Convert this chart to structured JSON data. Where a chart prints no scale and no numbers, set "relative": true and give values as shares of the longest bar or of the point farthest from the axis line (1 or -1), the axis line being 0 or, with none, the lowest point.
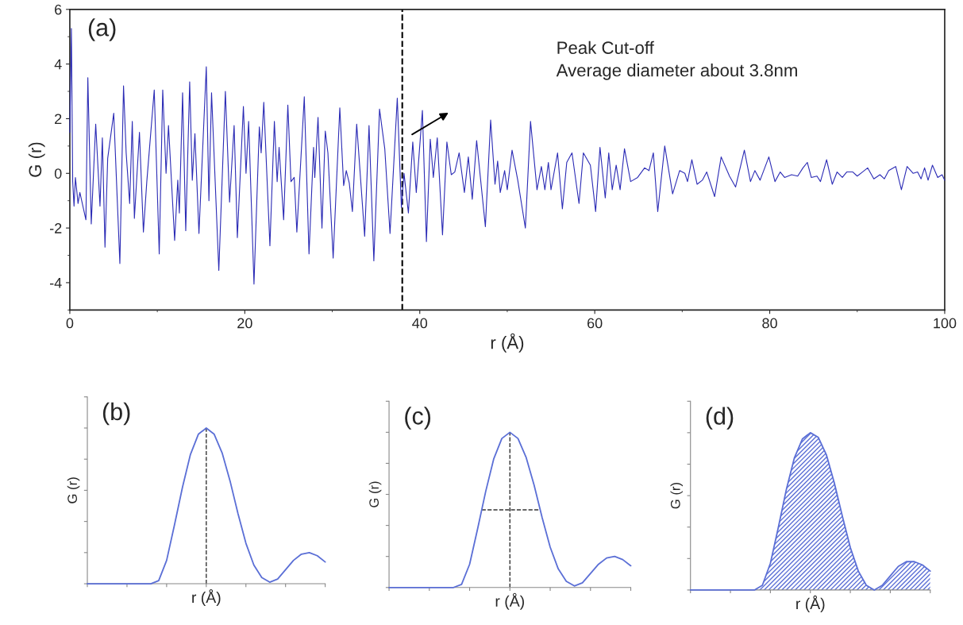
{
  "chart_data": [
    {
      "type": "line",
      "title": "(a)",
      "xlabel": "r (Å)",
      "ylabel": "G (r)",
      "x": [
        0,
        0.18,
        0.33,
        0.48,
        0.64,
        0.94,
        1.15,
        1.84,
        2.06,
        2.45,
        2.96,
        3.45,
        3.72,
        4.02,
        4.33,
        5.02,
        5.72,
        6.14,
        6.44,
        6.84,
        7.14,
        7.38,
        7.96,
        8.41,
        8.8,
        9.65,
        10.22,
        10.62,
        11.0,
        11.28,
        11.98,
        12.34,
        12.52,
        12.89,
        13.25,
        13.7,
        14.0,
        14.3,
        14.76,
        15.6,
        15.9,
        16.2,
        17.03,
        17.78,
        18.26,
        18.78,
        19.15,
        19.84,
        20.14,
        20.44,
        21.05,
        21.66,
        21.87,
        22.17,
        22.87,
        23.38,
        23.7,
        23.92,
        24.44,
        24.92,
        25.28,
        25.65,
        25.95,
        26.8,
        27.34,
        27.86,
        28.0,
        28.37,
        28.82,
        29.2,
        29.5,
        30.1,
        30.86,
        31.3,
        31.6,
        31.94,
        32.3,
        32.79,
        33.7,
        34.2,
        34.75,
        35.4,
        36.0,
        36.6,
        37.43,
        37.9,
        38.2,
        38.7,
        39.2,
        39.6,
        40.3,
        40.76,
        41.2,
        41.55,
        42.0,
        42.6,
        43.1,
        43.6,
        44.0,
        44.5,
        45.1,
        45.55,
        46.0,
        46.5,
        47.5,
        48.1,
        48.6,
        48.9,
        49.2,
        49.7,
        50.0,
        50.55,
        51.2,
        52.07,
        52.66,
        53.4,
        53.9,
        54.3,
        54.7,
        55.0,
        55.75,
        56.3,
        56.8,
        57.4,
        58.2,
        58.7,
        59.5,
        60.1,
        60.6,
        61.2,
        61.6,
        62.0,
        62.45,
        62.9,
        63.4,
        64.1,
        64.9,
        65.7,
        66.2,
        66.7,
        67.2,
        68.0,
        68.9,
        69.7,
        70.3,
        70.6,
        71.1,
        71.7,
        72.3,
        72.8,
        73.7,
        74.45,
        75.4,
        76.1,
        77.1,
        77.8,
        78.3,
        78.9,
        79.9,
        80.6,
        81.2,
        81.7,
        82.5,
        83.2,
        83.8,
        84.3,
        84.75,
        85.4,
        85.8,
        86.5,
        87.15,
        87.7,
        88.3,
        88.8,
        89.5,
        90.0,
        90.6,
        91.2,
        91.9,
        92.6,
        93.1,
        93.6,
        94.4,
        95.05,
        95.7,
        96.4,
        96.9,
        97.3,
        97.7,
        98.1,
        98.6,
        99.2,
        99.7,
        100
      ],
      "series": [
        {
          "color": "#2b2bb5",
          "values": [
            1.5,
            5.3,
            -0.3,
            -1.2,
            -0.15,
            -1.1,
            -0.7,
            -1.7,
            3.5,
            -1.85,
            1.8,
            -1.2,
            1.3,
            -2.7,
            0.55,
            2.2,
            -3.3,
            3.2,
            0.75,
            -1.1,
            1.9,
            -1.65,
            1.5,
            -2.15,
            -0.3,
            3.05,
            -2.95,
            3.05,
            0,
            1.75,
            -2.45,
            -0.25,
            -1.45,
            2.95,
            -2.1,
            3.35,
            -0.25,
            1.45,
            -2.2,
            3.9,
            -1.0,
            2.95,
            -3.55,
            3.0,
            -1.05,
            1.75,
            -2.35,
            2.45,
            0,
            1.9,
            -4.05,
            1.7,
            0.75,
            2.6,
            -2.65,
            1.9,
            -0.3,
            0.95,
            -1.7,
            2.5,
            -0.3,
            -0.15,
            -2.15,
            2.8,
            -2.95,
            0.95,
            -0.15,
            2.05,
            -2.0,
            1.55,
            0.75,
            -3.1,
            2.4,
            -0.45,
            0.1,
            -0.35,
            -1.4,
            1.8,
            -2.3,
            1.75,
            -3.2,
            2.35,
            0.9,
            -2.2,
            2.75,
            -1.25,
            0,
            -1.45,
            1.15,
            -0.7,
            2.3,
            -2.5,
            1.25,
            -0.15,
            1.3,
            -2.25,
            1.15,
            -0.05,
            0.05,
            0.75,
            -0.7,
            0.6,
            -0.95,
            1.2,
            -1.95,
            1.95,
            -0.4,
            0.45,
            -0.7,
            0.1,
            -0.6,
            0.85,
            -0.25,
            -2.0,
            1.9,
            -0.6,
            0.25,
            -0.6,
            0.4,
            -0.6,
            0.75,
            -1.3,
            0.4,
            0.75,
            -1.1,
            0.75,
            0.3,
            -1.4,
            0.95,
            -0.9,
            0.75,
            -0.6,
            0.3,
            -0.6,
            0.9,
            -0.3,
            -0.15,
            0.2,
            0.1,
            0.75,
            -1.4,
            1.0,
            -0.75,
            0.1,
            0,
            -0.3,
            0.5,
            -0.4,
            -0.25,
            0.05,
            -0.85,
            0.6,
            -0.1,
            -0.5,
            0.85,
            -0.3,
            0.1,
            -0.25,
            0.6,
            -0.3,
            0.05,
            -0.15,
            -0.05,
            -0.1,
            0.2,
            0.4,
            -0.15,
            -0.1,
            -0.3,
            0.5,
            -0.4,
            0.05,
            -0.15,
            0.05,
            0.05,
            -0.1,
            0.05,
            0.2,
            -0.2,
            -0.05,
            -0.2,
            0.1,
            0.25,
            -0.6,
            0.25,
            0,
            0.05,
            -0.2,
            0.2,
            -0.25,
            0.3,
            -0.15,
            -0.05,
            -0.25
          ]
        }
      ],
      "xlim": [
        0,
        100
      ],
      "ylim": [
        -5,
        6
      ],
      "xticks": [
        0,
        20,
        40,
        60,
        80,
        100
      ],
      "yticks": [
        -4,
        -2,
        0,
        2,
        4,
        6
      ],
      "ref_lines": [
        {
          "axis": "x",
          "value": 38,
          "color": "#000000",
          "line_style": "dashed"
        }
      ],
      "annotations": [
        "Peak Cut-off",
        "Average diameter about 3.8nm"
      ],
      "grid": false
    },
    {
      "type": "line",
      "title": "(b)",
      "xlabel": "r (Å)",
      "ylabel": "G (r)",
      "relative": true,
      "tick_labels": false,
      "categories": [
        null,
        null,
        null,
        null,
        null,
        null,
        null,
        null,
        null,
        null,
        null,
        null,
        null,
        null,
        null,
        null,
        null,
        null,
        null,
        null,
        null,
        null,
        null,
        null,
        null,
        null,
        null,
        null,
        null,
        null,
        null
      ],
      "series": [
        {
          "color": "#5b6fd6",
          "values": [
            0,
            0,
            0,
            0,
            0,
            0,
            0,
            0,
            0,
            0.02,
            0.15,
            0.38,
            0.62,
            0.83,
            0.96,
            1.0,
            0.96,
            0.84,
            0.66,
            0.45,
            0.26,
            0.12,
            0.04,
            0.01,
            0.03,
            0.09,
            0.15,
            0.19,
            0.2,
            0.18,
            0.14
          ]
        }
      ],
      "grid": false
    },
    {
      "type": "line",
      "title": "(c)",
      "xlabel": "r (Å)",
      "ylabel": "G (r)",
      "relative": true,
      "tick_labels": false,
      "categories": [
        null,
        null,
        null,
        null,
        null,
        null,
        null,
        null,
        null,
        null,
        null,
        null,
        null,
        null,
        null,
        null,
        null,
        null,
        null,
        null,
        null,
        null,
        null,
        null,
        null,
        null,
        null,
        null,
        null,
        null,
        null
      ],
      "series": [
        {
          "color": "#5b6fd6",
          "values": [
            0,
            0,
            0,
            0,
            0,
            0,
            0,
            0,
            0,
            0.02,
            0.15,
            0.38,
            0.62,
            0.83,
            0.96,
            1.0,
            0.96,
            0.84,
            0.66,
            0.45,
            0.26,
            0.12,
            0.04,
            0.01,
            0.03,
            0.09,
            0.15,
            0.19,
            0.2,
            0.18,
            0.14
          ]
        }
      ],
      "ref_lines": [
        {
          "axis": "y",
          "value": 0.5,
          "color": "#333333",
          "line_style": "dashed"
        }
      ],
      "grid": false
    },
    {
      "type": "area",
      "title": "(d)",
      "xlabel": "r (Å)",
      "ylabel": "G (r)",
      "relative": true,
      "tick_labels": false,
      "categories": [
        null,
        null,
        null,
        null,
        null,
        null,
        null,
        null,
        null,
        null,
        null,
        null,
        null,
        null,
        null,
        null,
        null,
        null,
        null,
        null,
        null,
        null,
        null,
        null,
        null,
        null,
        null,
        null,
        null,
        null,
        null
      ],
      "series": [
        {
          "color": "#5b6fd6",
          "values": [
            0,
            0,
            0,
            0,
            0,
            0,
            0,
            0,
            0,
            0.03,
            0.17,
            0.4,
            0.64,
            0.84,
            0.96,
            1.0,
            0.97,
            0.86,
            0.68,
            0.47,
            0.27,
            0.12,
            0.03,
            0.0,
            0.03,
            0.09,
            0.15,
            0.18,
            0.18,
            0.16,
            0.12
          ]
        }
      ],
      "grid": false
    }
  ]
}
